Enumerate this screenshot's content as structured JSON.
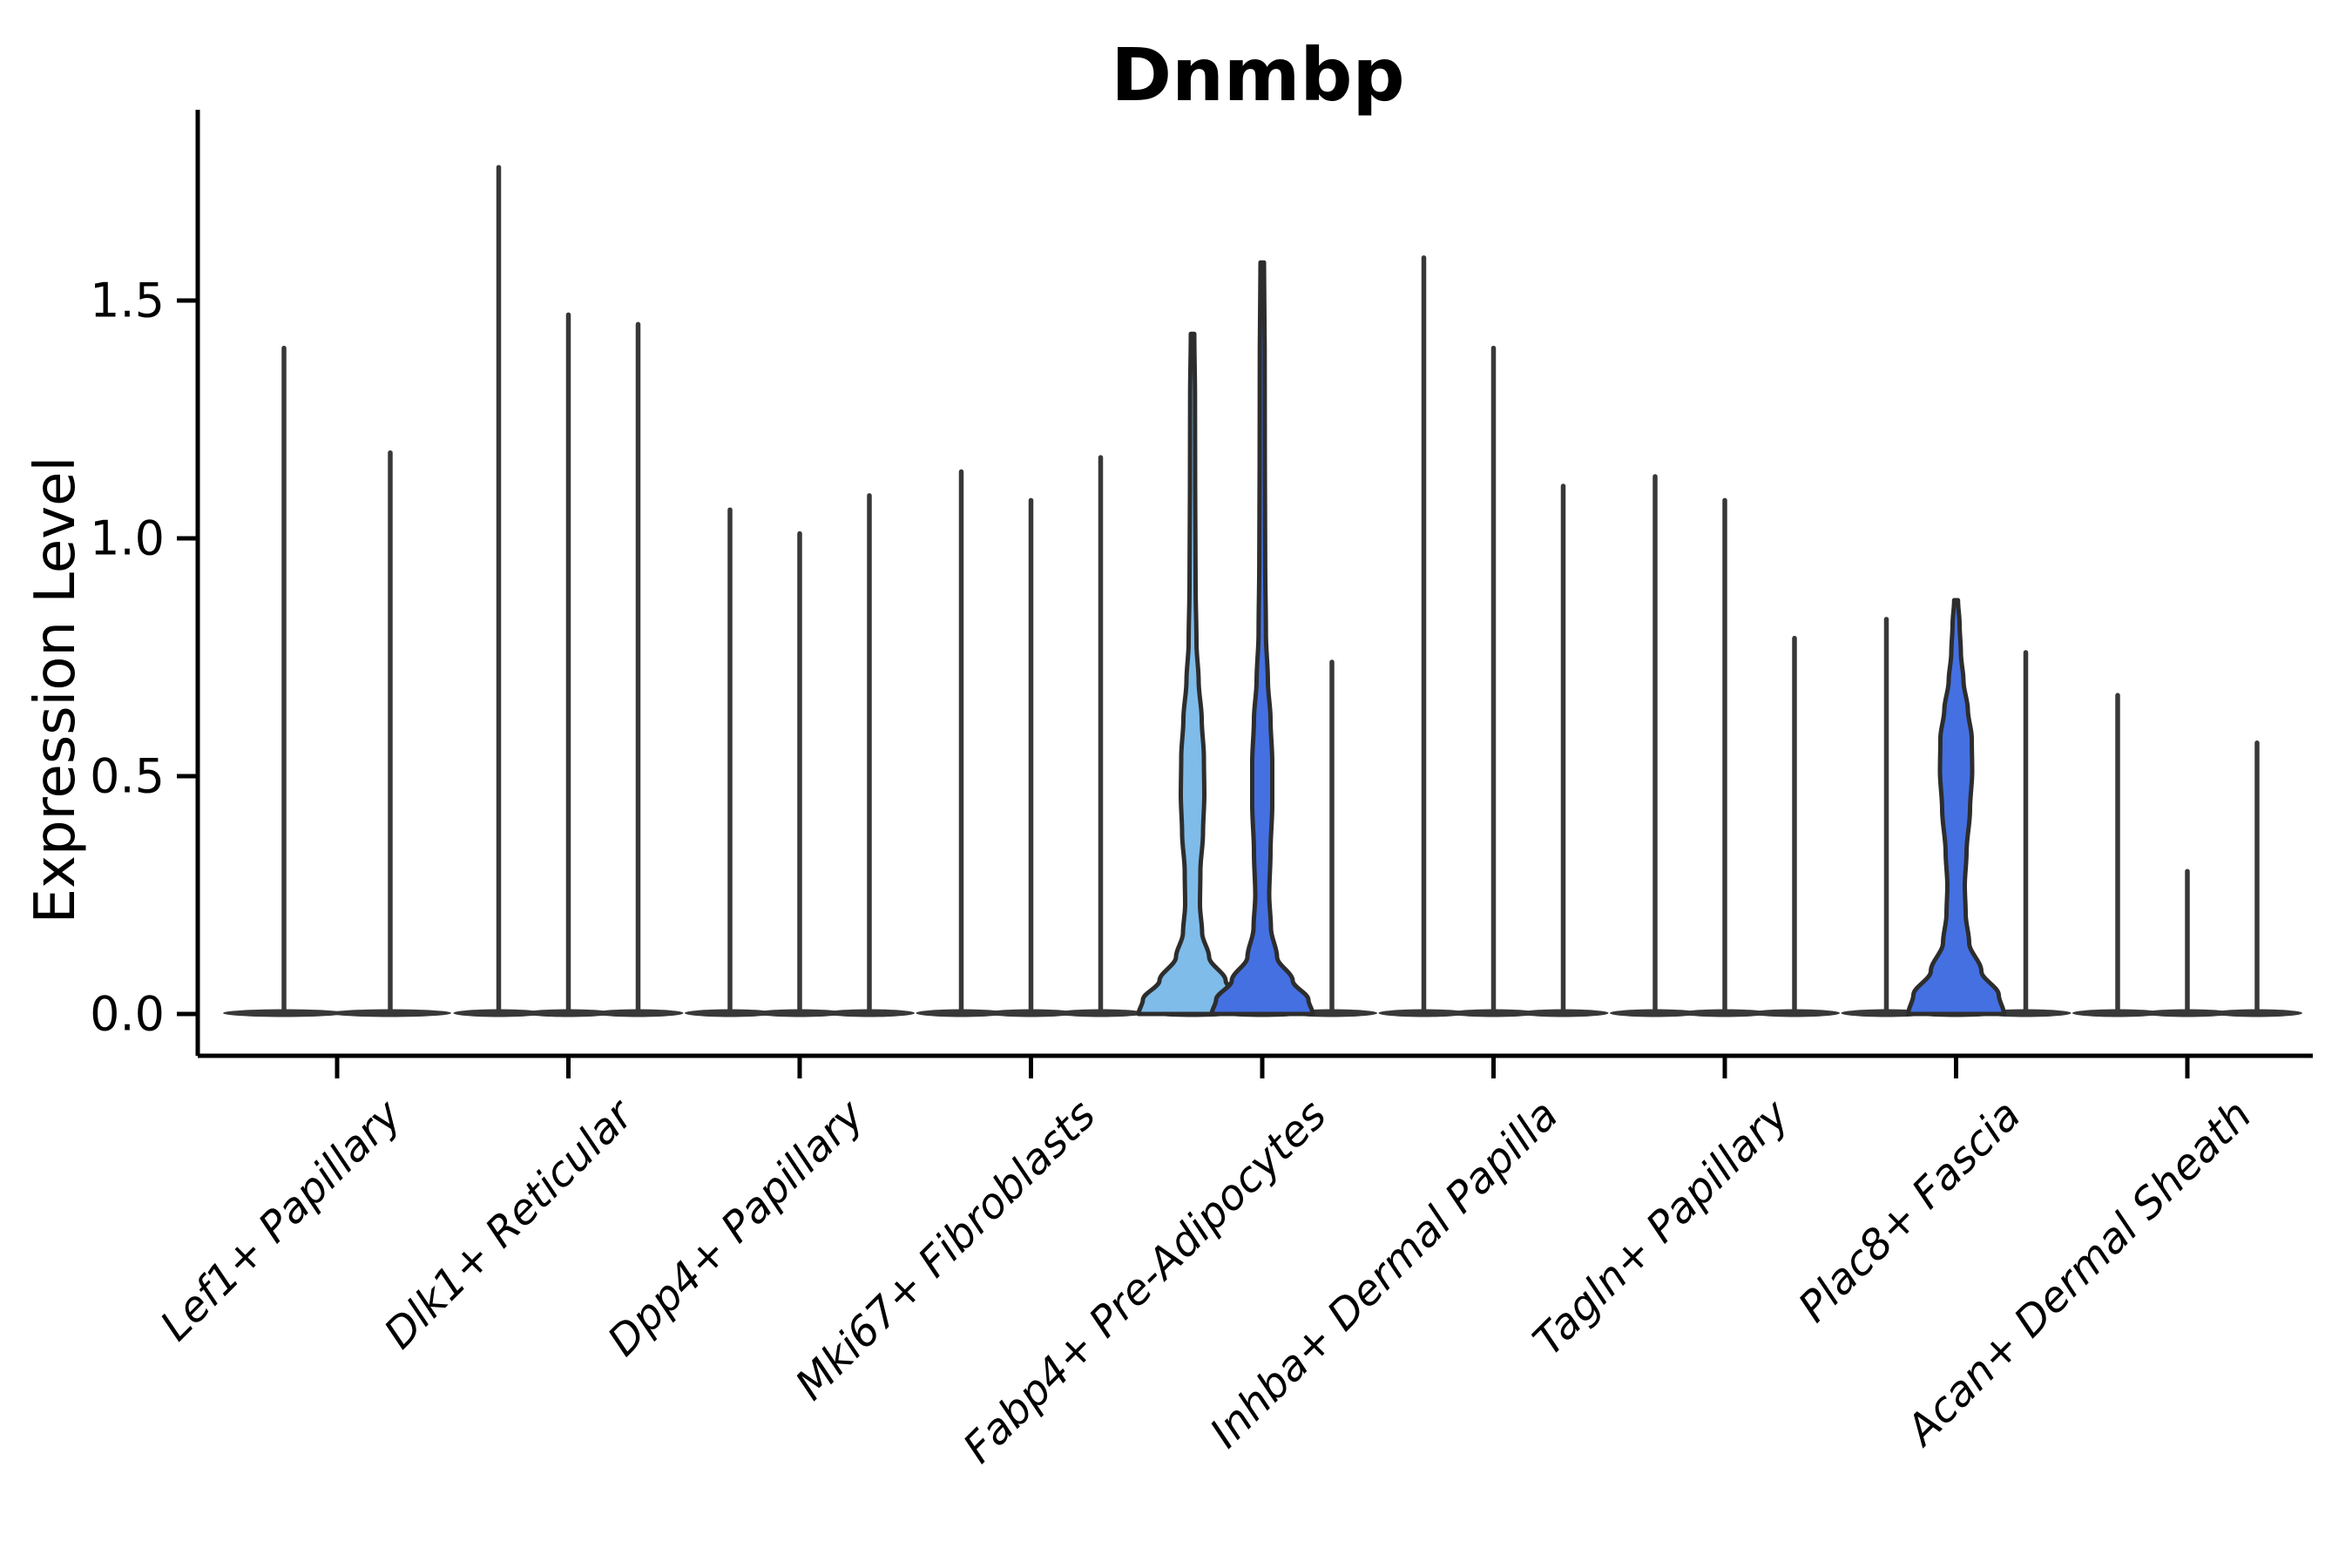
{
  "title": "Dnmbp",
  "y_axis": {
    "label": "Expression Level",
    "tick_labels": [
      "0.0",
      "0.5",
      "1.0",
      "1.5"
    ],
    "tick_values": [
      0.0,
      0.5,
      1.0,
      1.5
    ]
  },
  "colors": {
    "light_blue": "#7FBCE9",
    "royal_blue": "#4470E2",
    "violin_ink": "#383838",
    "outline_ink": "#2d2d2d",
    "axis_ink": "#000000"
  },
  "chart_data": {
    "type": "violin",
    "title": "Dnmbp",
    "xlabel": "",
    "ylabel": "Expression Level",
    "ylim": [
      -0.09,
      1.875
    ],
    "yticks": [
      0.0,
      0.5,
      1.0,
      1.5
    ],
    "grid": false,
    "legend": "none",
    "categories": [
      "Lef1+ Papillary",
      "Dlk1+ Reticular",
      "Dpp4+ Papillary",
      "Mki67+ Fibroblasts",
      "Fabp4+ Pre-Adipocytes",
      "Inhba+ Dermal Papilla",
      "Tagln+ Papillary",
      "Plac8+ Fascia",
      "Acan+ Dermal Sheath"
    ],
    "groups": [
      {
        "label": "Lef1+ Papillary",
        "violins": [
          {
            "max": 1.4
          },
          {
            "max": 1.18
          }
        ]
      },
      {
        "label": "Dlk1+ Reticular",
        "violins": [
          {
            "max": 1.78
          },
          {
            "max": 1.47
          },
          {
            "max": 1.45
          }
        ]
      },
      {
        "label": "Dpp4+ Papillary",
        "violins": [
          {
            "max": 1.06
          },
          {
            "max": 1.01
          },
          {
            "max": 1.09
          }
        ]
      },
      {
        "label": "Mki67+ Fibroblasts",
        "violins": [
          {
            "max": 1.14
          },
          {
            "max": 1.08
          },
          {
            "max": 1.17
          }
        ]
      },
      {
        "label": "Fabp4+ Pre-Adipocytes",
        "violins": [
          {
            "max": 1.43,
            "fill": "light_blue",
            "profile": "fabp4_light"
          },
          {
            "max": 1.58,
            "fill": "royal_blue",
            "profile": "fabp4_royal"
          },
          {
            "max": 0.74
          }
        ]
      },
      {
        "label": "Inhba+ Dermal Papilla",
        "violins": [
          {
            "max": 1.59
          },
          {
            "max": 1.4
          },
          {
            "max": 1.11
          }
        ]
      },
      {
        "label": "Tagln+ Papillary",
        "violins": [
          {
            "max": 1.13
          },
          {
            "max": 1.08
          },
          {
            "max": 0.79
          }
        ]
      },
      {
        "label": "Plac8+ Fascia",
        "violins": [
          {
            "max": 0.83
          },
          {
            "max": 0.87,
            "fill": "royal_blue",
            "profile": "plac8_royal"
          },
          {
            "max": 0.76
          }
        ]
      },
      {
        "label": "Acan+ Dermal Sheath",
        "violins": [
          {
            "max": 0.67
          },
          {
            "max": 0.3
          },
          {
            "max": 0.57
          }
        ]
      }
    ],
    "filled_violin_profiles": {
      "fabp4_light": [
        [
          0,
          62
        ],
        [
          0.03,
          57
        ],
        [
          0.07,
          38
        ],
        [
          0.12,
          19
        ],
        [
          0.17,
          11
        ],
        [
          0.23,
          8.5
        ],
        [
          0.3,
          9
        ],
        [
          0.38,
          12
        ],
        [
          0.46,
          13.5
        ],
        [
          0.54,
          13
        ],
        [
          0.62,
          10.5
        ],
        [
          0.7,
          7
        ],
        [
          0.78,
          4.5
        ],
        [
          0.9,
          3.5
        ],
        [
          1.1,
          3
        ],
        [
          1.3,
          2.8
        ],
        [
          1.43,
          2.0
        ]
      ],
      "fabp4_royal": [
        [
          0,
          58
        ],
        [
          0.03,
          53
        ],
        [
          0.07,
          35
        ],
        [
          0.12,
          17
        ],
        [
          0.18,
          10
        ],
        [
          0.25,
          8
        ],
        [
          0.34,
          9.5
        ],
        [
          0.44,
          11.5
        ],
        [
          0.53,
          11.5
        ],
        [
          0.62,
          9.5
        ],
        [
          0.7,
          6.5
        ],
        [
          0.8,
          4.2
        ],
        [
          0.95,
          3.4
        ],
        [
          1.15,
          3
        ],
        [
          1.4,
          2.8
        ],
        [
          1.58,
          2.0
        ]
      ],
      "plac8_royal": [
        [
          0,
          55
        ],
        [
          0.04,
          49
        ],
        [
          0.09,
          29
        ],
        [
          0.15,
          15
        ],
        [
          0.21,
          11
        ],
        [
          0.27,
          10
        ],
        [
          0.34,
          12
        ],
        [
          0.43,
          16
        ],
        [
          0.51,
          18.5
        ],
        [
          0.58,
          18
        ],
        [
          0.64,
          13.5
        ],
        [
          0.7,
          8.5
        ],
        [
          0.76,
          5.5
        ],
        [
          0.82,
          4
        ],
        [
          0.87,
          2.2
        ]
      ]
    }
  }
}
